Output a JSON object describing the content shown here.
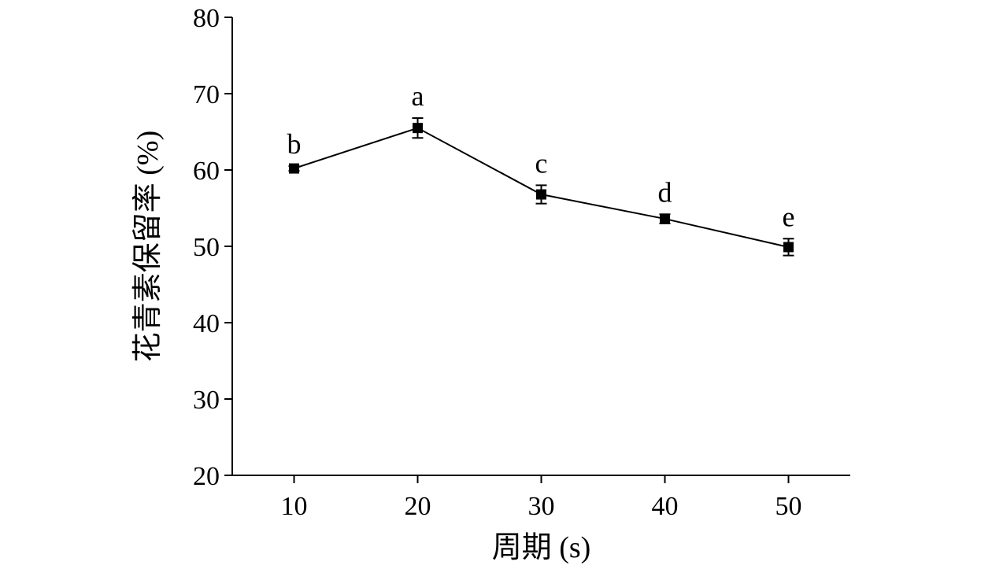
{
  "chart_data": {
    "type": "line",
    "xlabel": "周期 (s)",
    "ylabel": "花青素保留率 (%)",
    "x_ticks": [
      10,
      20,
      30,
      40,
      50
    ],
    "xlim": [
      5,
      55
    ],
    "y_ticks": [
      20,
      30,
      40,
      50,
      60,
      70,
      80
    ],
    "ylim": [
      20,
      80
    ],
    "grid": false,
    "colors": {
      "series": "#000000"
    },
    "series": [
      {
        "x": [
          10,
          20,
          30,
          40,
          50
        ],
        "y": [
          60.2,
          65.5,
          56.8,
          53.6,
          49.9
        ],
        "error": [
          0.3,
          1.3,
          1.2,
          0.6,
          1.1
        ],
        "labels": [
          "b",
          "a",
          "c",
          "d",
          "e"
        ]
      }
    ]
  }
}
